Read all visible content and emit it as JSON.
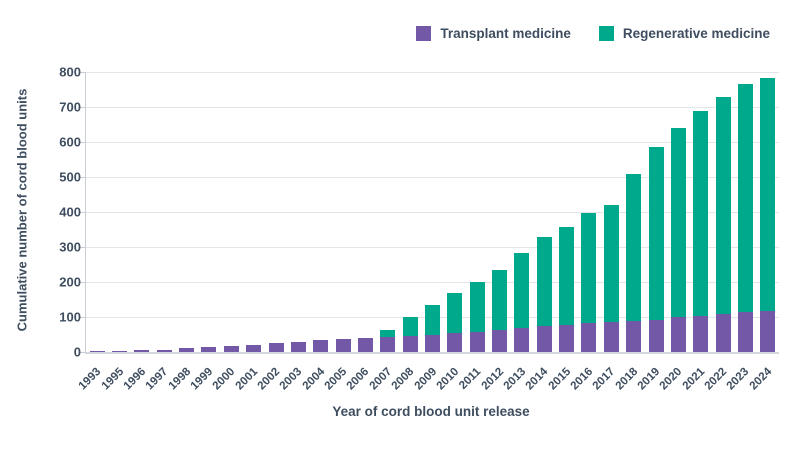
{
  "legend": {
    "items": [
      {
        "label": "Transplant medicine",
        "color": "#7458a8"
      },
      {
        "label": "Regenerative medicine",
        "color": "#00a88c"
      }
    ]
  },
  "chart_data": {
    "type": "bar",
    "stacked": true,
    "title": "",
    "xlabel": "Year of cord blood unit release",
    "ylabel": "Cumulative number of cord blood units",
    "ylim": [
      0,
      800
    ],
    "ytick_step": 100,
    "ytick_labels": [
      "0",
      "100",
      "200",
      "300",
      "400",
      "500",
      "600",
      "700",
      "800"
    ],
    "grid": true,
    "legend_position": "top-right",
    "categories": [
      "1993",
      "1995",
      "1996",
      "1997",
      "1998",
      "1999",
      "2000",
      "2001",
      "2002",
      "2003",
      "2004",
      "2005",
      "2006",
      "2007",
      "2008",
      "2009",
      "2010",
      "2011",
      "2012",
      "2013",
      "2014",
      "2015",
      "2016",
      "2017",
      "2018",
      "2019",
      "2020",
      "2021",
      "2022",
      "2023",
      "2024"
    ],
    "series": [
      {
        "name": "Transplant medicine",
        "color": "#7458a8",
        "values": [
          2,
          3,
          5,
          7,
          11,
          15,
          18,
          21,
          25,
          28,
          34,
          37,
          41,
          42,
          47,
          50,
          53,
          56,
          62,
          68,
          73,
          78,
          83,
          86,
          88,
          92,
          101,
          104,
          108,
          113,
          118
        ]
      },
      {
        "name": "Regenerative medicine",
        "color": "#00a88c",
        "values": [
          0,
          0,
          0,
          0,
          0,
          0,
          0,
          0,
          0,
          0,
          0,
          0,
          0,
          21,
          53,
          85,
          117,
          144,
          173,
          214,
          257,
          279,
          313,
          335,
          422,
          493,
          539,
          586,
          622,
          652,
          665
        ]
      }
    ],
    "totals": [
      2,
      3,
      5,
      7,
      11,
      15,
      18,
      21,
      25,
      28,
      34,
      37,
      41,
      63,
      100,
      135,
      170,
      200,
      235,
      282,
      330,
      357,
      396,
      421,
      510,
      585,
      640,
      690,
      730,
      765,
      783
    ]
  },
  "colors": {
    "text": "#3e4d5f",
    "gridline": "#e4e5e9",
    "axis": "#c9ced6",
    "background": "#ffffff"
  }
}
